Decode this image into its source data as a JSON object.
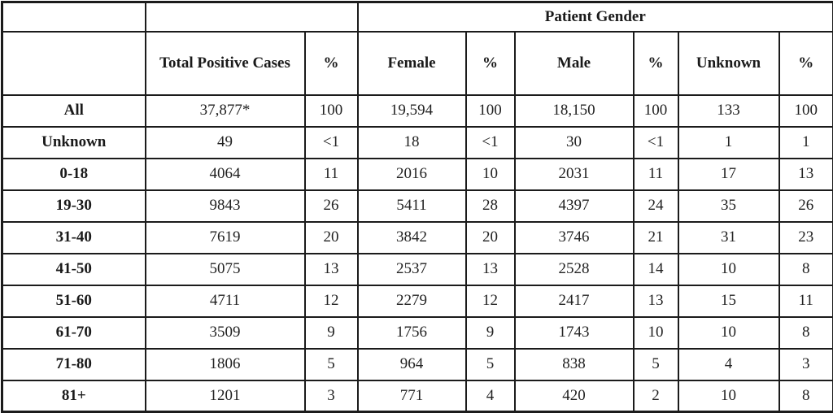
{
  "chart_data": {
    "type": "table",
    "group_header": "Patient Gender",
    "column_headers": [
      "",
      "Total Positive Cases",
      "%",
      "Female",
      "%",
      "Male",
      "%",
      "Unknown",
      "%"
    ],
    "rows": [
      {
        "label": "All",
        "values": [
          "37,877*",
          "100",
          "19,594",
          "100",
          "18,150",
          "100",
          "133",
          "100"
        ]
      },
      {
        "label": "Unknown",
        "values": [
          "49",
          "<1",
          "18",
          "<1",
          "30",
          "<1",
          "1",
          "1"
        ]
      },
      {
        "label": "0-18",
        "values": [
          "4064",
          "11",
          "2016",
          "10",
          "2031",
          "11",
          "17",
          "13"
        ]
      },
      {
        "label": "19-30",
        "values": [
          "9843",
          "26",
          "5411",
          "28",
          "4397",
          "24",
          "35",
          "26"
        ]
      },
      {
        "label": "31-40",
        "values": [
          "7619",
          "20",
          "3842",
          "20",
          "3746",
          "21",
          "31",
          "23"
        ]
      },
      {
        "label": "41-50",
        "values": [
          "5075",
          "13",
          "2537",
          "13",
          "2528",
          "14",
          "10",
          "8"
        ]
      },
      {
        "label": "51-60",
        "values": [
          "4711",
          "12",
          "2279",
          "12",
          "2417",
          "13",
          "15",
          "11"
        ]
      },
      {
        "label": "61-70",
        "values": [
          "3509",
          "9",
          "1756",
          "9",
          "1743",
          "10",
          "10",
          "8"
        ]
      },
      {
        "label": "71-80",
        "values": [
          "1806",
          "5",
          "964",
          "5",
          "838",
          "5",
          "4",
          "3"
        ]
      },
      {
        "label": "81+",
        "values": [
          "1201",
          "3",
          "771",
          "4",
          "420",
          "2",
          "10",
          "8"
        ]
      }
    ]
  },
  "colors": {
    "border": "#1b1b1b",
    "text": "#1e1e1e",
    "background": "#ffffff"
  }
}
